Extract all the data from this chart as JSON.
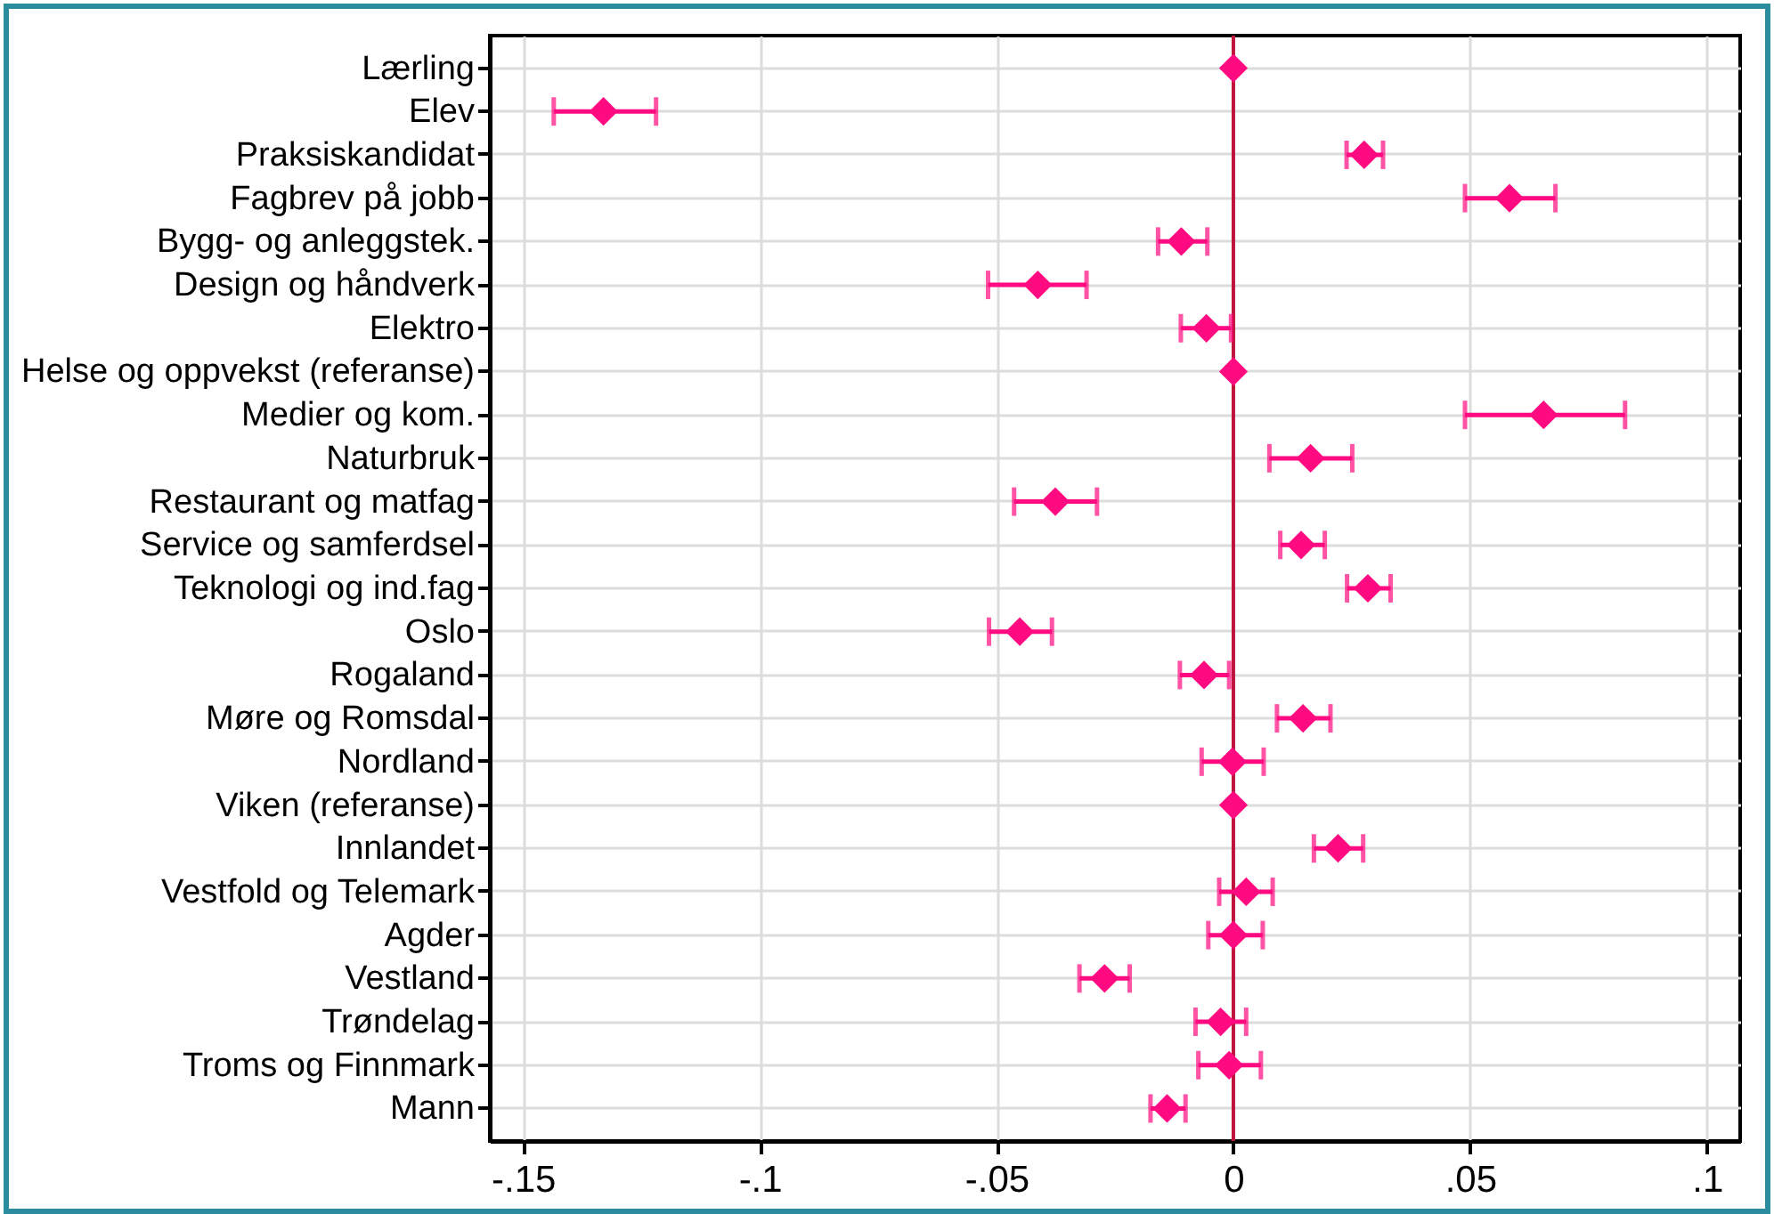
{
  "chart_data": {
    "type": "scatter",
    "orientation": "horizontal",
    "marker": "diamond",
    "color": "#ff0a80",
    "grid": true,
    "categories": [
      "Lærling",
      "Elev",
      "Praksiskandidat",
      "Fagbrev på jobb",
      "Bygg- og anleggstek.",
      "Design og håndverk",
      "Elektro",
      "Helse og oppvekst (referanse)",
      "Medier og kom.",
      "Naturbruk",
      "Restaurant og matfag",
      "Service og samferdsel",
      "Teknologi og ind.fag",
      "Oslo",
      "Rogaland",
      "Møre og Romsdal",
      "Nordland",
      "Viken (referanse)",
      "Innlandet",
      "Vestfold og Telemark",
      "Agder",
      "Vestland",
      "Trøndelag",
      "Troms og Finnmark",
      "Mann"
    ],
    "values": [
      0,
      -0.133,
      0.0276,
      0.0583,
      -0.011,
      -0.0413,
      -0.0057,
      0,
      0.0655,
      0.0163,
      -0.0376,
      0.0143,
      0.0284,
      -0.0451,
      -0.0062,
      0.0147,
      -0.0002,
      0,
      0.0221,
      0.0027,
      0,
      -0.0272,
      -0.0027,
      -0.0009,
      -0.014
    ],
    "errors": [
      null,
      [
        -0.1435,
        -0.1219
      ],
      [
        0.0239,
        0.0316
      ],
      [
        0.0489,
        0.068
      ],
      [
        -0.0159,
        -0.0055
      ],
      [
        -0.0518,
        -0.031
      ],
      [
        -0.0111,
        -0.0005
      ],
      null,
      [
        0.0489,
        0.0827
      ],
      [
        0.0076,
        0.0251
      ],
      [
        -0.0463,
        -0.0288
      ],
      [
        0.0099,
        0.0193
      ],
      [
        0.024,
        0.0332
      ],
      [
        -0.0516,
        -0.0383
      ],
      [
        -0.0113,
        -0.0009
      ],
      [
        0.0092,
        0.0205
      ],
      [
        -0.0067,
        0.0064
      ],
      null,
      [
        0.017,
        0.0274
      ],
      [
        -0.003,
        0.0083
      ],
      [
        -0.0053,
        0.0062
      ],
      [
        -0.0325,
        -0.0219
      ],
      [
        -0.008,
        0.0027
      ],
      [
        -0.0074,
        0.0058
      ],
      [
        -0.0175,
        -0.0101
      ]
    ],
    "xlim": [
      -0.157,
      0.107
    ],
    "xticks": [
      {
        "value": -0.15,
        "label": "-.15"
      },
      {
        "value": -0.1,
        "label": "-.1"
      },
      {
        "value": -0.05,
        "label": "-.05"
      },
      0,
      {
        "value": 0.05,
        "label": ".05"
      },
      {
        "value": 0.1,
        "label": ".1"
      }
    ],
    "ref_lines": [
      {
        "axis": "x",
        "value": 0,
        "color": "#c0143c"
      }
    ]
  }
}
